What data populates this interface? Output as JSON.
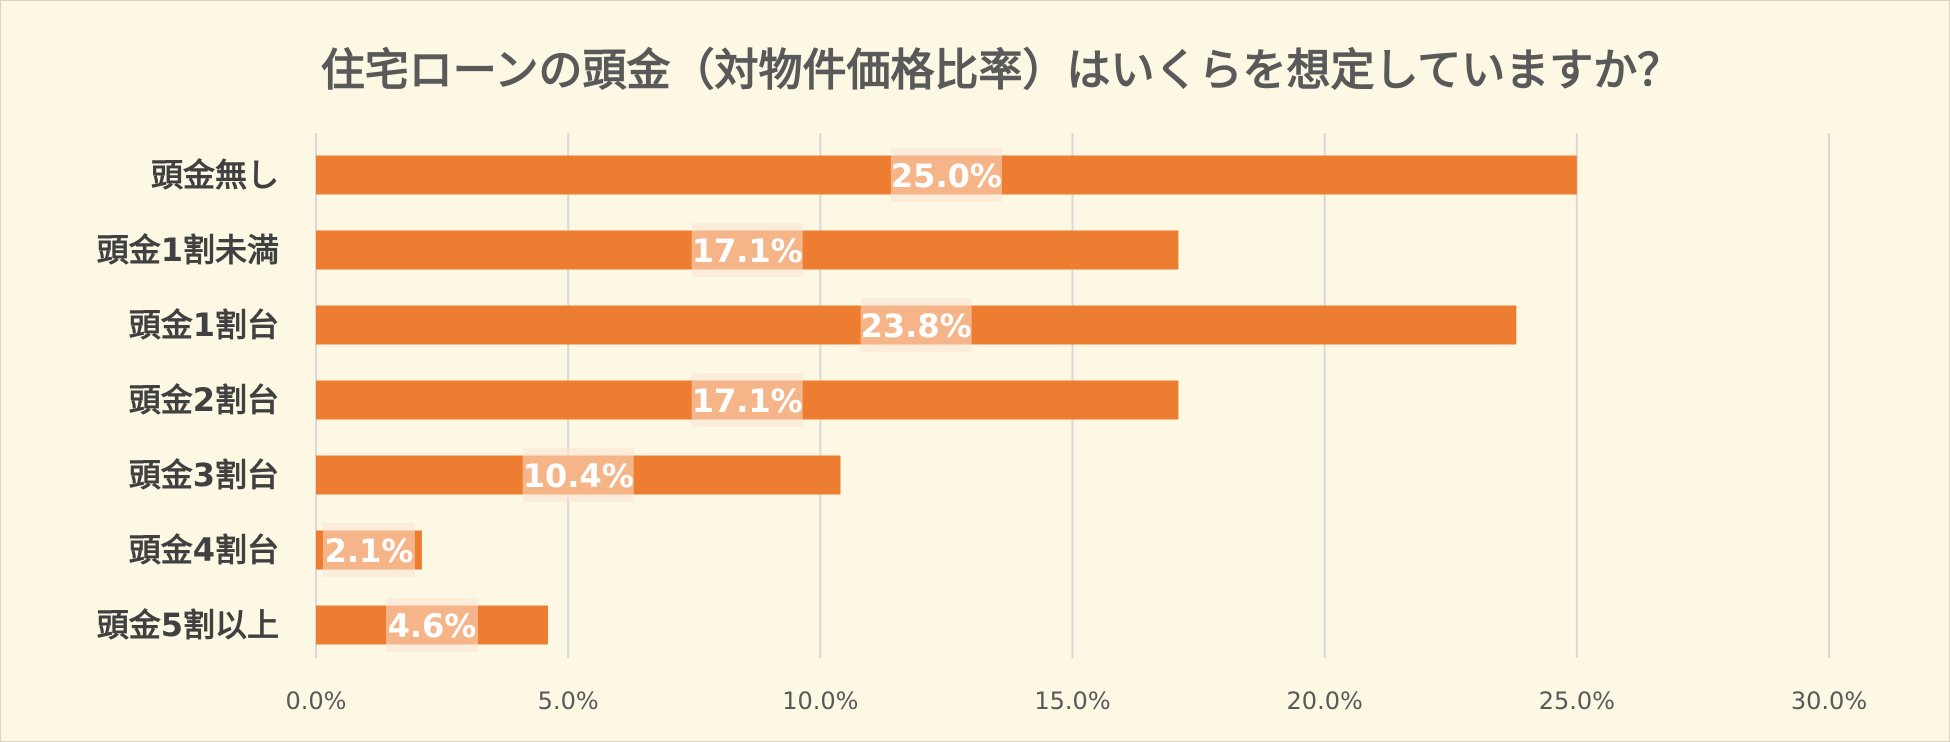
{
  "chart_data": {
    "type": "bar",
    "orientation": "horizontal",
    "title": "住宅ローンの頭金（対物件価格比率）はいくらを想定していますか？",
    "categories": [
      "頭金無し",
      "頭金1割未満",
      "頭金1割台",
      "頭金2割台",
      "頭金3割台",
      "頭金4割台",
      "頭金5割以上"
    ],
    "values": [
      25.0,
      17.1,
      23.8,
      17.1,
      10.4,
      2.1,
      4.6
    ],
    "data_labels": [
      "25.0%",
      "17.1%",
      "23.8%",
      "17.1%",
      "10.4%",
      "2.1%",
      "4.6%"
    ],
    "xlim": [
      0,
      30
    ],
    "x_ticks": [
      0,
      5,
      10,
      15,
      20,
      25,
      30
    ],
    "x_tick_labels": [
      "0.0%",
      "5.0%",
      "10.0%",
      "15.0%",
      "20.0%",
      "25.0%",
      "30.0%"
    ],
    "xlabel": "",
    "ylabel": "",
    "grid": true,
    "legend": "none",
    "bar_color": "#ed7d31",
    "background_color": "#fdf8e4"
  }
}
